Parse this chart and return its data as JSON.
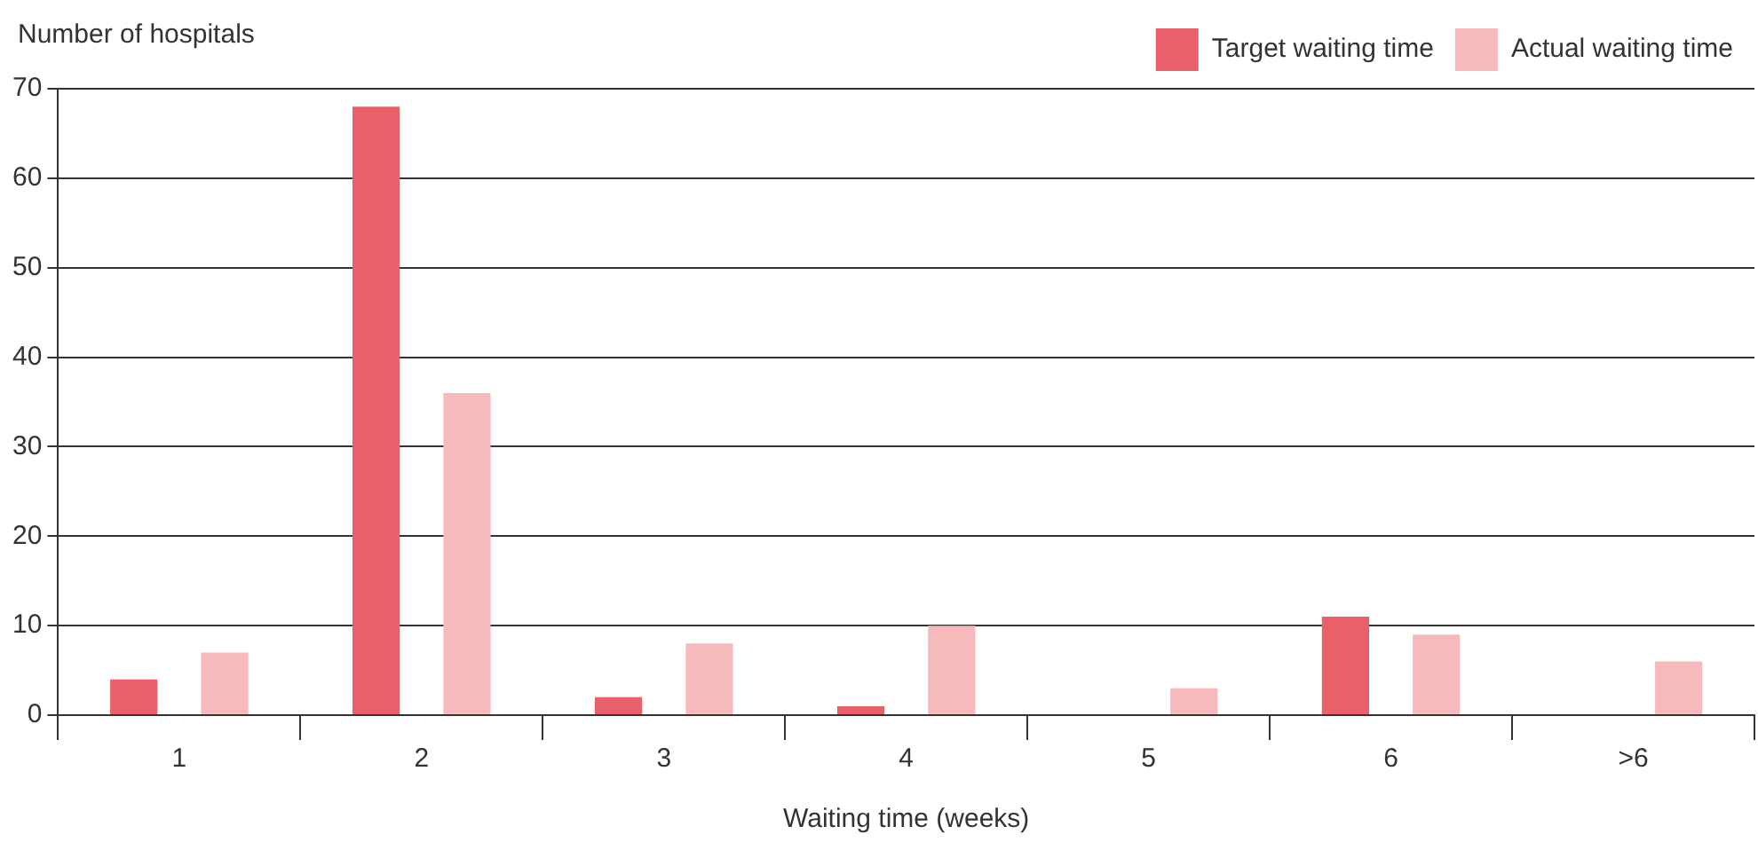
{
  "chart_data": {
    "type": "bar",
    "xlabel": "Waiting time (weeks)",
    "ylabel": "Number of hospitals",
    "categories": [
      "1",
      "2",
      "3",
      "4",
      "5",
      "6",
      ">6"
    ],
    "series": [
      {
        "name": "Target waiting time",
        "color": "#ea6068",
        "values": [
          4,
          68,
          2,
          1,
          0,
          11,
          0
        ]
      },
      {
        "name": "Actual waiting time",
        "color": "#f6b9bc",
        "values": [
          7,
          36,
          8,
          10,
          3,
          9,
          6
        ]
      }
    ],
    "ylim": [
      0,
      70
    ],
    "yticks": [
      0,
      10,
      20,
      30,
      40,
      50,
      60,
      70
    ],
    "grid": "y",
    "legend": "top right"
  }
}
